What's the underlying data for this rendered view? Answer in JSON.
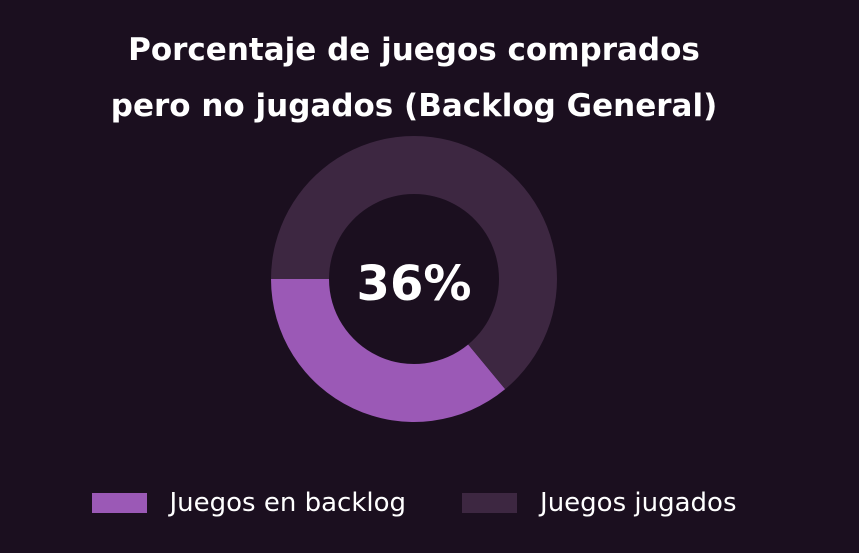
{
  "chart_data": {
    "type": "pie",
    "style": "donut",
    "title_lines": [
      "Porcentaje de juegos comprados",
      "pero no jugados (Backlog General)"
    ],
    "center_label": "36%",
    "slices": [
      {
        "name": "Juegos en backlog",
        "value": 36,
        "color": "#9b59b6"
      },
      {
        "name": "Juegos jugados",
        "value": 64,
        "color": "#3d2741"
      }
    ],
    "legend_position": "bottom"
  },
  "colors": {
    "background": "#1b0f1f",
    "text": "#ffffff"
  }
}
